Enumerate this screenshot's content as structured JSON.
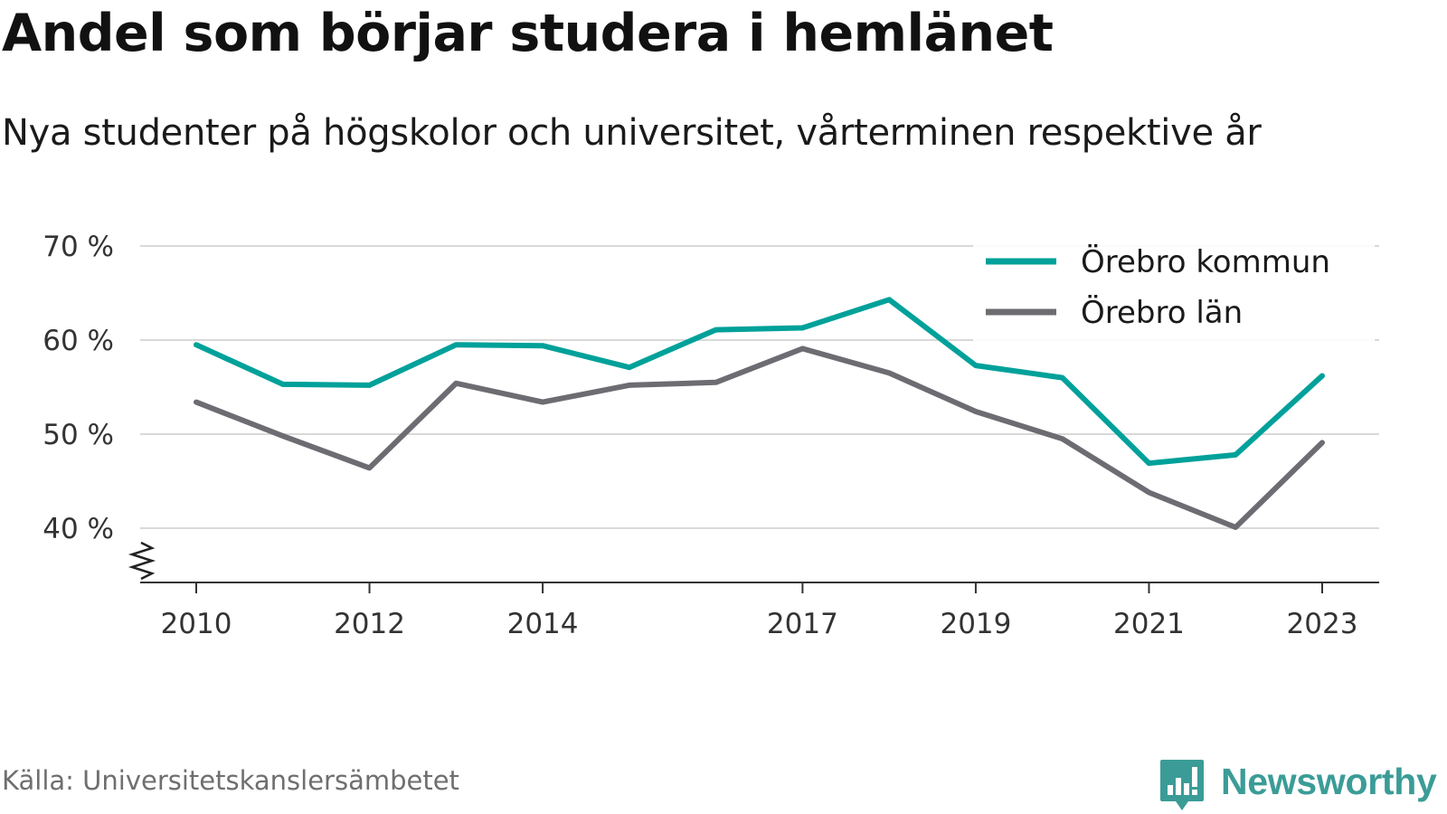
{
  "title": "Andel som börjar studera i hemlänet",
  "subtitle": "Nya studenter på högskolor och universitet, vårterminen respektive år",
  "source": "Källa: Universitetskanslersämbetet",
  "brand": {
    "name": "Newsworthy",
    "icon": "newsworthy-logo-icon",
    "color": "#3b9c97"
  },
  "chart_data": {
    "type": "line",
    "x": [
      2010,
      2011,
      2012,
      2013,
      2014,
      2015,
      2016,
      2017,
      2018,
      2019,
      2020,
      2021,
      2022,
      2023
    ],
    "x_tick_labels": [
      "2010",
      "2012",
      "2014",
      "2017",
      "2019",
      "2021",
      "2023"
    ],
    "x_tick_values": [
      2010,
      2012,
      2014,
      2017,
      2019,
      2021,
      2023
    ],
    "y_ticks": [
      40,
      50,
      60,
      70
    ],
    "y_tick_labels": [
      "40 %",
      "50 %",
      "60 %",
      "70 %"
    ],
    "ylim": [
      34,
      72
    ],
    "xlim": [
      2009.4,
      2023.65
    ],
    "y_axis_break": true,
    "grid": true,
    "legend_position": "top-right",
    "series": [
      {
        "name": "Örebro kommun",
        "color": "#00a19a",
        "values": [
          59.5,
          55.3,
          55.2,
          59.5,
          59.4,
          57.1,
          61.1,
          61.3,
          64.3,
          57.3,
          56.0,
          46.9,
          47.8,
          56.2
        ]
      },
      {
        "name": "Örebro län",
        "color": "#6d6c72",
        "values": [
          53.4,
          49.8,
          46.4,
          55.4,
          53.4,
          55.2,
          55.5,
          59.1,
          56.5,
          52.4,
          49.5,
          43.8,
          40.1,
          49.1
        ]
      }
    ]
  }
}
